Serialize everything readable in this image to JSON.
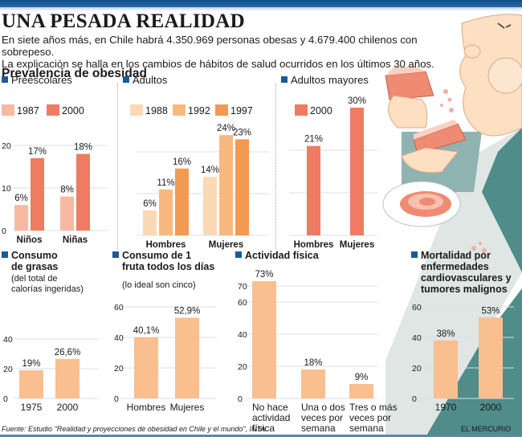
{
  "header": {
    "title": "UNA PESADA REALIDAD",
    "subtitle_line1": "En siete años más, en Chile habrá 4.350.969 personas obesas y 4.679.400 chilenos con sobrepeso.",
    "subtitle_line2": "La explicación se halla en los cambios de hábitos de salud ocurridos en los últimos 30 años.",
    "section": "Prevalencia de obesidad"
  },
  "colors": {
    "header_blue": "#0d4f8b",
    "legend_square": "#1a5a9a",
    "salmon_light": "#f7b9a2",
    "salmon": "#ee7b62",
    "peach_light": "#fcd9b5",
    "peach": "#f9b97e",
    "orange": "#f39a52",
    "single_bar": "#f9bf8f",
    "grid": "#d8e2ea"
  },
  "footer": {
    "source": "Fuente: Estudio \"Realidad y proyecciones de obesidad en Chile y el mundo\", INTA.",
    "brand": "EL MERCURIO"
  },
  "chart_data": [
    {
      "id": "preescolares",
      "type": "bar",
      "title": "Preescolares",
      "subtitle": "",
      "categories": [
        "Niños",
        "Niñas"
      ],
      "series": [
        {
          "name": "1987",
          "values": [
            6,
            8
          ],
          "labels": [
            "6%",
            "8%"
          ],
          "color": "#f7b9a2"
        },
        {
          "name": "2000",
          "values": [
            17,
            18
          ],
          "labels": [
            "17%",
            "18%"
          ],
          "color": "#ee7b62"
        }
      ],
      "yticks": [
        0,
        10,
        20
      ],
      "ylim": [
        0,
        20
      ],
      "grid": true,
      "legend": "top-left"
    },
    {
      "id": "adultos",
      "type": "bar",
      "title": "Adultos",
      "subtitle": "",
      "categories": [
        "Hombres",
        "Mujeres"
      ],
      "series": [
        {
          "name": "1988",
          "values": [
            6,
            14
          ],
          "labels": [
            "6%",
            "14%"
          ],
          "color": "#fcd9b5"
        },
        {
          "name": "1992",
          "values": [
            11,
            24
          ],
          "labels": [
            "11%",
            "24%"
          ],
          "color": "#f9b97e"
        },
        {
          "name": "1997",
          "values": [
            16,
            23
          ],
          "labels": [
            "16%",
            "23%"
          ],
          "color": "#f39a52"
        }
      ],
      "yticks": [],
      "ylim": [
        0,
        20
      ],
      "grid": true,
      "legend": "top-left"
    },
    {
      "id": "adultos-mayores",
      "type": "bar",
      "title": "Adultos mayores",
      "subtitle": "",
      "categories": [
        "Hombres",
        "Mujeres"
      ],
      "series": [
        {
          "name": "2000",
          "values": [
            21,
            30
          ],
          "labels": [
            "21%",
            "30%"
          ],
          "color": "#ee7b62"
        }
      ],
      "yticks": [],
      "ylim": [
        0,
        20
      ],
      "grid": true,
      "legend": "top-left"
    },
    {
      "id": "grasas",
      "type": "bar",
      "title": "Consumo de grasas",
      "title_lines": [
        "Consumo",
        "de grasas"
      ],
      "subtitle_lines": [
        "(del total de",
        "calorías ingeridas)"
      ],
      "categories": [
        "1975",
        "2000"
      ],
      "series": [
        {
          "name": "",
          "values": [
            19,
            26.6
          ],
          "labels": [
            "19%",
            "26,6%"
          ],
          "color": "#f9bf8f"
        }
      ],
      "yticks": [
        0,
        20,
        40
      ],
      "ylim": [
        0,
        40
      ],
      "grid": true,
      "legend": "none"
    },
    {
      "id": "fruta",
      "type": "bar",
      "title": "Consumo de 1 fruta todos los días",
      "title_lines": [
        "Consumo de 1",
        "fruta todos los días"
      ],
      "subtitle_lines": [
        "(lo ideal son cinco)"
      ],
      "categories": [
        "Hombres",
        "Mujeres"
      ],
      "series": [
        {
          "name": "",
          "values": [
            40.1,
            52.9
          ],
          "labels": [
            "40,1%",
            "52,9%"
          ],
          "color": "#f9bf8f"
        }
      ],
      "yticks": [
        0,
        20,
        40,
        60
      ],
      "ylim": [
        0,
        60
      ],
      "grid": true,
      "legend": "none"
    },
    {
      "id": "actividad",
      "type": "bar",
      "title": "Actividad física",
      "title_lines": [
        "Actividad física"
      ],
      "subtitle_lines": [],
      "categories": [
        "No hace actividad física",
        "Una o dos veces por semana",
        "Tres o más veces por semana"
      ],
      "category_lines": [
        [
          "No hace",
          "actividad",
          "física"
        ],
        [
          "Una o dos",
          "veces por",
          "semana"
        ],
        [
          "Tres o más",
          "veces por",
          "semana"
        ]
      ],
      "series": [
        {
          "name": "",
          "values": [
            73,
            18,
            9
          ],
          "labels": [
            "73%",
            "18%",
            "9%"
          ],
          "color": "#f9bf8f"
        }
      ],
      "yticks": [
        0,
        20,
        40,
        60,
        70
      ],
      "ylim": [
        0,
        70
      ],
      "grid": true,
      "legend": "none"
    },
    {
      "id": "mortalidad",
      "type": "bar",
      "title": "Mortalidad por enfermedades cardiovasculares y tumores malignos",
      "title_lines": [
        "Mortalidad por",
        "enfermedades",
        "cardiovasculares y",
        "tumores malignos"
      ],
      "subtitle_lines": [],
      "categories": [
        "1970",
        "2000"
      ],
      "series": [
        {
          "name": "",
          "values": [
            38,
            53
          ],
          "labels": [
            "38%",
            "53%"
          ],
          "color": "#f9bf8f"
        }
      ],
      "yticks": [
        0,
        20,
        40,
        60
      ],
      "ylim": [
        0,
        60
      ],
      "grid": true,
      "legend": "none"
    }
  ]
}
